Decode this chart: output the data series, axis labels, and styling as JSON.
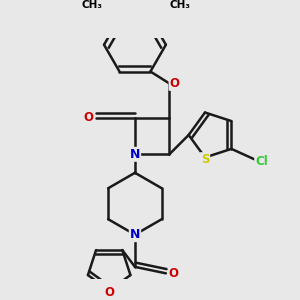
{
  "background_color": "#e8e8e8",
  "atom_colors": {
    "C": "#000000",
    "N": "#0000cc",
    "O": "#cc0000",
    "S": "#cccc00",
    "Cl": "#33cc33",
    "H": "#000000"
  },
  "bond_color": "#1a1a1a",
  "bond_width": 1.8,
  "figsize": [
    3.0,
    3.0
  ],
  "dpi": 100,
  "xlim": [
    -2.5,
    2.5
  ],
  "ylim": [
    -2.8,
    2.8
  ]
}
